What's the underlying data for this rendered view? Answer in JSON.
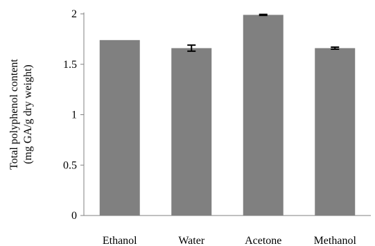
{
  "chart_data": {
    "type": "bar",
    "title": "",
    "xlabel": "",
    "ylabel_line1": "Total polyphenol content",
    "ylabel_line2": "(mg GA/g dry weight)",
    "categories": [
      "Ethanol",
      "Water",
      "Acetone",
      "Methanol"
    ],
    "values": [
      1.74,
      1.66,
      1.99,
      1.66
    ],
    "errors": [
      0.0,
      0.03,
      0.005,
      0.01
    ],
    "ylim": [
      0,
      2
    ],
    "yticks": [
      "0",
      "0.5",
      "1",
      "1.5",
      "2"
    ],
    "ytick_values": [
      0,
      0.5,
      1,
      1.5,
      2
    ],
    "bar_color": "#808080",
    "grid": false,
    "legend": "none"
  }
}
